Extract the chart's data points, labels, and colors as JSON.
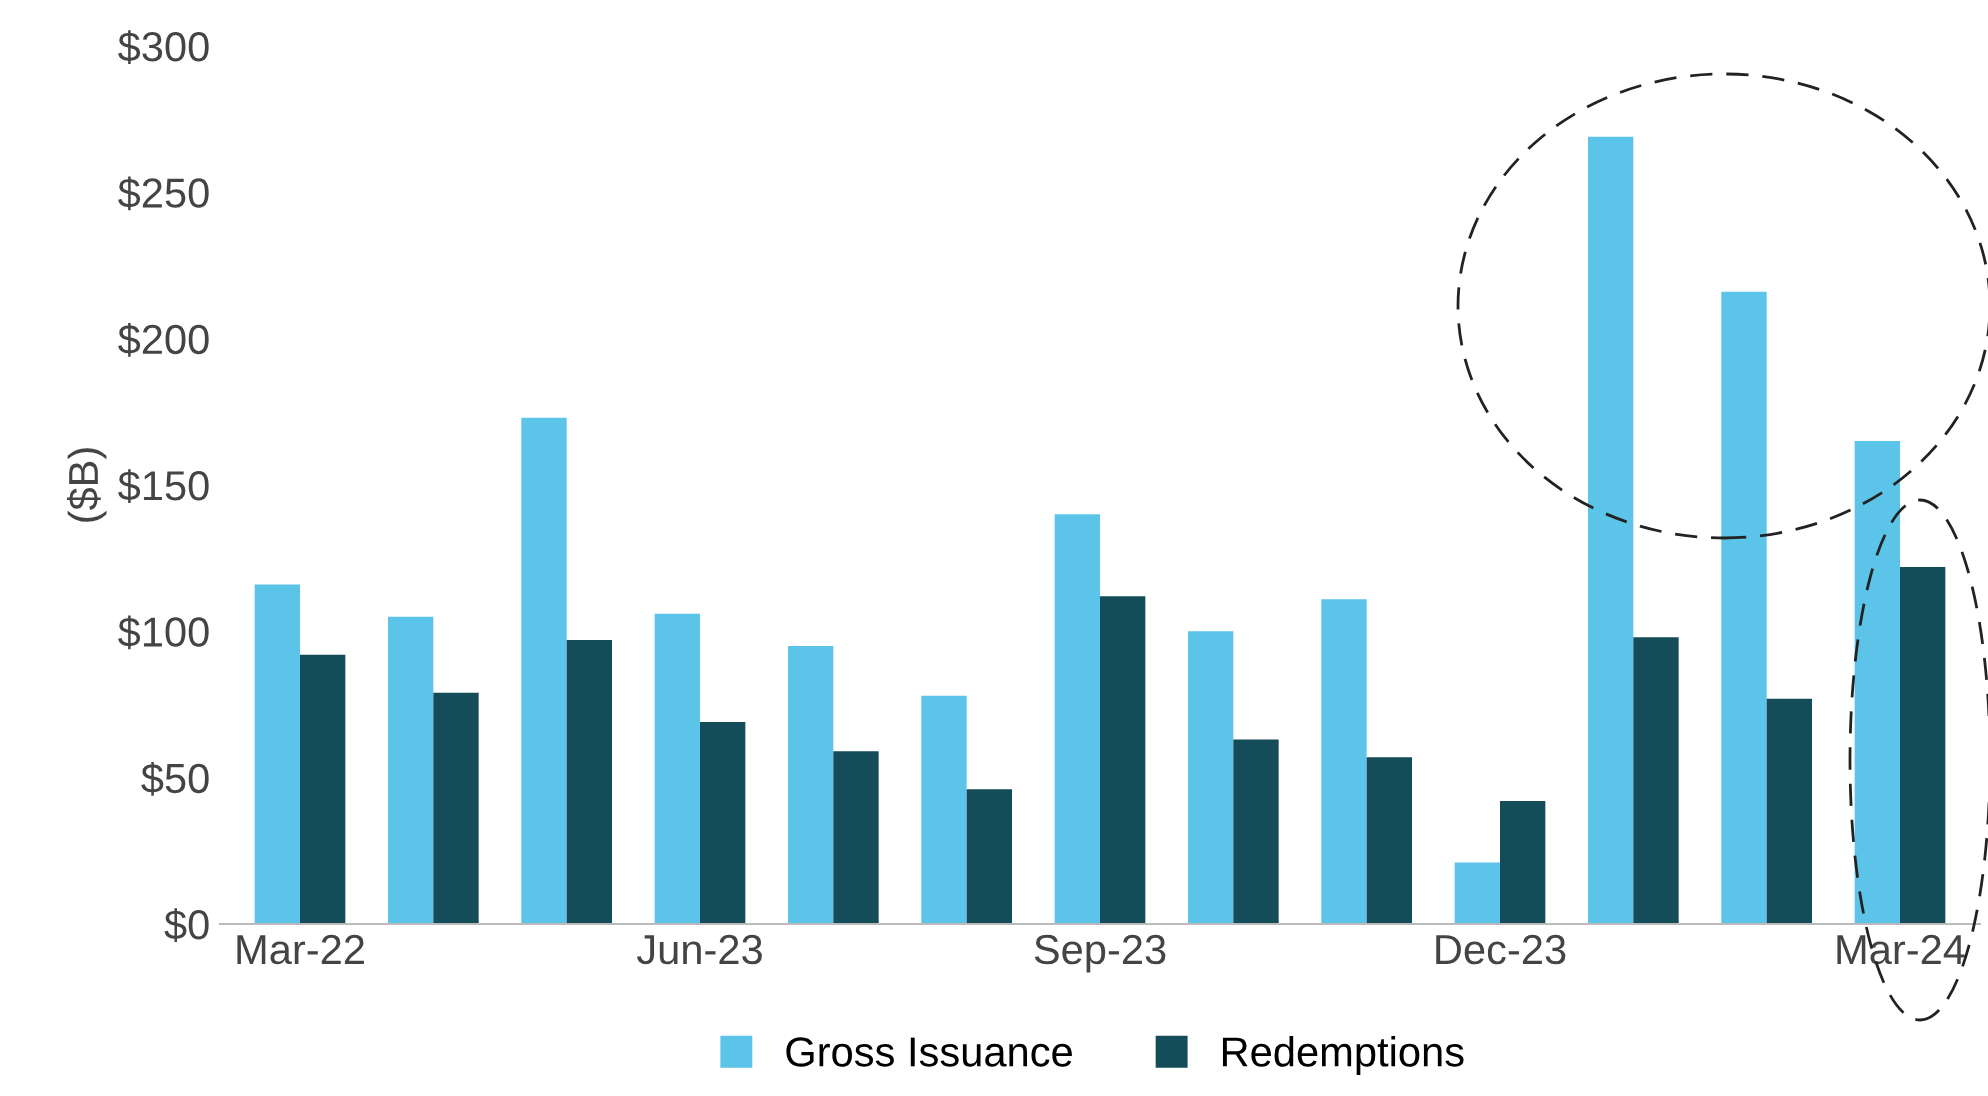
{
  "chart_data": {
    "type": "bar",
    "ylabel": "($B)",
    "categories": [
      "Mar-22",
      null,
      null,
      "Jun-23",
      null,
      null,
      "Sep-23",
      null,
      null,
      "Dec-23",
      null,
      null,
      "Mar-24"
    ],
    "series": [
      {
        "name": "Gross Issuance",
        "color": "#5bc4e8",
        "values": [
          116,
          105,
          173,
          106,
          95,
          78,
          140,
          100,
          111,
          21,
          269,
          216,
          165
        ]
      },
      {
        "name": "Redemptions",
        "color": "#154c59",
        "values": [
          92,
          79,
          97,
          69,
          59,
          46,
          112,
          63,
          57,
          42,
          98,
          77,
          122
        ]
      }
    ],
    "ylim": [
      0,
      300
    ],
    "yticks": [
      {
        "value": 0,
        "label": "$0"
      },
      {
        "value": 50,
        "label": "$50"
      },
      {
        "value": 100,
        "label": "$100"
      },
      {
        "value": 150,
        "label": "$150"
      },
      {
        "value": 200,
        "label": "$200"
      },
      {
        "value": 250,
        "label": "$250"
      },
      {
        "value": 300,
        "label": "$300"
      }
    ],
    "grid": false,
    "legend": "bottom"
  }
}
